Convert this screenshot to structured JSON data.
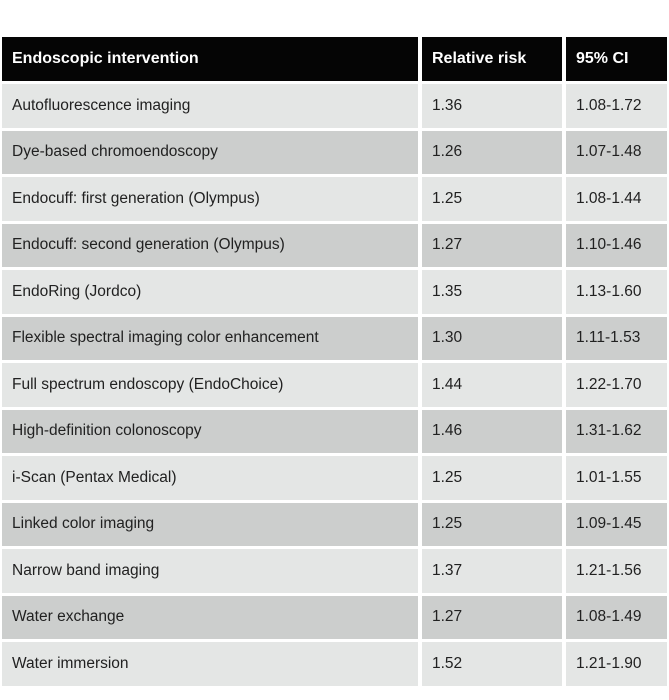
{
  "colors": {
    "header_bg": "#050505",
    "header_text": "#ffffff",
    "row_light": "#e4e6e5",
    "row_dark": "#cccecd",
    "body_text": "#212121",
    "page_bg": "#ffffff"
  },
  "table": {
    "headers": [
      "Endoscopic intervention",
      "Relative risk",
      "95% CI"
    ],
    "rows": [
      {
        "intervention": "Autofluorescence imaging",
        "relative_risk": "1.36",
        "ci": "1.08-1.72"
      },
      {
        "intervention": "Dye-based chromoendoscopy",
        "relative_risk": "1.26",
        "ci": "1.07-1.48"
      },
      {
        "intervention": "Endocuff: first generation (Olympus)",
        "relative_risk": "1.25",
        "ci": "1.08-1.44"
      },
      {
        "intervention": "Endocuff: second generation (Olympus)",
        "relative_risk": "1.27",
        "ci": "1.10-1.46"
      },
      {
        "intervention": "EndoRing (Jordco)",
        "relative_risk": "1.35",
        "ci": "1.13-1.60"
      },
      {
        "intervention": "Flexible spectral imaging color enhancement",
        "relative_risk": "1.30",
        "ci": "1.11-1.53"
      },
      {
        "intervention": "Full spectrum endoscopy (EndoChoice)",
        "relative_risk": "1.44",
        "ci": "1.22-1.70"
      },
      {
        "intervention": "High-definition colonoscopy",
        "relative_risk": "1.46",
        "ci": "1.31-1.62"
      },
      {
        "intervention": "i-Scan (Pentax Medical)",
        "relative_risk": "1.25",
        "ci": "1.01-1.55"
      },
      {
        "intervention": "Linked color imaging",
        "relative_risk": "1.25",
        "ci": "1.09-1.45"
      },
      {
        "intervention": "Narrow band imaging",
        "relative_risk": "1.37",
        "ci": "1.21-1.56"
      },
      {
        "intervention": "Water exchange",
        "relative_risk": "1.27",
        "ci": "1.08-1.49"
      },
      {
        "intervention": "Water immersion",
        "relative_risk": "1.52",
        "ci": "1.21-1.90"
      }
    ]
  },
  "chart_data": {
    "type": "table",
    "columns": [
      "Endoscopic intervention",
      "Relative risk",
      "95% CI"
    ],
    "rows": [
      [
        "Autofluorescence imaging",
        "1.36",
        "1.08-1.72"
      ],
      [
        "Dye-based chromoendoscopy",
        "1.26",
        "1.07-1.48"
      ],
      [
        "Endocuff: first generation (Olympus)",
        "1.25",
        "1.08-1.44"
      ],
      [
        "Endocuff: second generation (Olympus)",
        "1.27",
        "1.10-1.46"
      ],
      [
        "EndoRing (Jordco)",
        "1.35",
        "1.13-1.60"
      ],
      [
        "Flexible spectral imaging color enhancement",
        "1.30",
        "1.11-1.53"
      ],
      [
        "Full spectrum endoscopy (EndoChoice)",
        "1.44",
        "1.22-1.70"
      ],
      [
        "High-definition colonoscopy",
        "1.46",
        "1.31-1.62"
      ],
      [
        "i-Scan (Pentax Medical)",
        "1.25",
        "1.01-1.55"
      ],
      [
        "Linked color imaging",
        "1.25",
        "1.09-1.45"
      ],
      [
        "Narrow band imaging",
        "1.37",
        "1.21-1.56"
      ],
      [
        "Water exchange",
        "1.27",
        "1.08-1.49"
      ],
      [
        "Water immersion",
        "1.52",
        "1.21-1.90"
      ]
    ],
    "layout": {
      "header_style": "black-bar",
      "zebra_striping": true,
      "legend": "none",
      "grid": "cell-gaps"
    }
  }
}
